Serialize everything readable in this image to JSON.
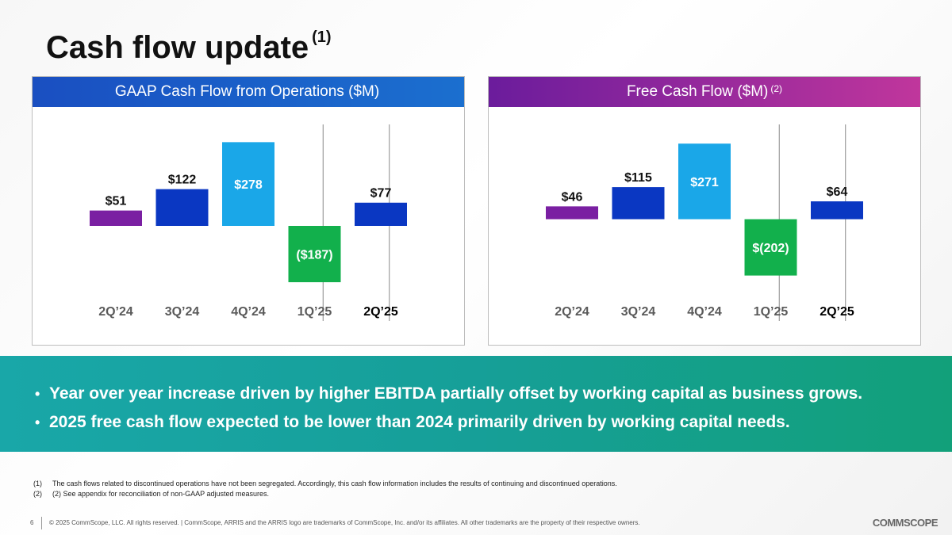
{
  "title": "Cash flow update",
  "title_footnote": "(1)",
  "banner": {
    "bullets": [
      "Year over year increase driven by higher EBITDA partially offset by working capital as business grows.",
      "2025 free cash flow expected to be lower than 2024 primarily driven by working capital needs."
    ]
  },
  "footnotes": [
    {
      "num": "(1)",
      "text": "The cash flows related to discontinued operations have not been segregated. Accordingly, this cash flow information includes the results of continuing and discontinued operations."
    },
    {
      "num": "(2)",
      "text": "(2) See appendix for reconciliation of non-GAAP adjusted measures."
    }
  ],
  "footer": {
    "page_number": "6",
    "copyright": "© 2025 CommScope, LLC. All rights reserved. | CommScope, ARRIS and the ARRIS logo are trademarks of CommScope, Inc. and/or its affiliates.  All other trademarks are the property of their respective owners.",
    "logo": "COMMSCOPE"
  },
  "chart_data": [
    {
      "type": "bar",
      "title": "GAAP Cash Flow from Operations",
      "title_unit": "($M)",
      "title_footnote": "",
      "categories": [
        "2Q’24",
        "3Q’24",
        "4Q’24",
        "1Q’25",
        "2Q’25"
      ],
      "values": [
        51,
        122,
        278,
        -187,
        77
      ],
      "labels": [
        "$51",
        "$122",
        "$278",
        "($187)",
        "$77"
      ],
      "colors": [
        "#7a1fa2",
        "#0a37c2",
        "#1aa7e8",
        "#12b04c",
        "#0a37c2"
      ],
      "label_inside": [
        false,
        false,
        true,
        true,
        false
      ],
      "highlight_last_category": true,
      "ylim": [
        -200,
        300
      ]
    },
    {
      "type": "bar",
      "title": "Free Cash Flow",
      "title_unit": "($M)",
      "title_footnote": "(2)",
      "categories": [
        "2Q’24",
        "3Q’24",
        "4Q’24",
        "1Q’25",
        "2Q’25"
      ],
      "values": [
        46,
        115,
        271,
        -202,
        64
      ],
      "labels": [
        "$46",
        "$115",
        "$271",
        "$(202)",
        "$64"
      ],
      "colors": [
        "#7a1fa2",
        "#0a37c2",
        "#1aa7e8",
        "#12b04c",
        "#0a37c2"
      ],
      "label_inside": [
        false,
        false,
        true,
        true,
        false
      ],
      "highlight_last_category": true,
      "ylim": [
        -240,
        300
      ]
    }
  ]
}
